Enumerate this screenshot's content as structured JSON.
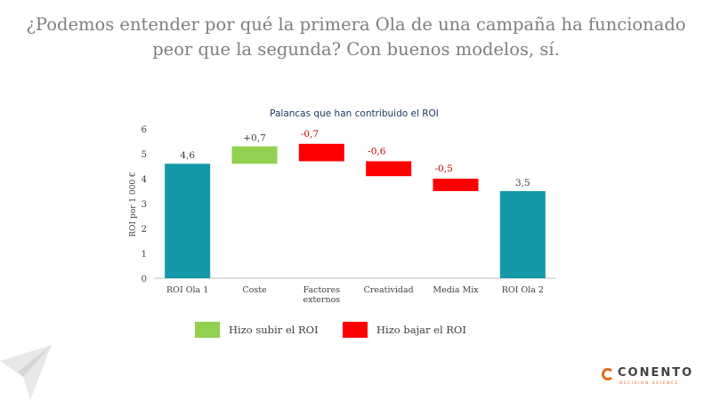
{
  "slide": {
    "title_line1": "¿Podemos entender por qué la primera Ola de una campaña ha funcionado",
    "title_line2": "peor que la segunda? Con buenos modelos, sí."
  },
  "chart_data": {
    "type": "bar",
    "subtype": "waterfall",
    "title": "Palancas que han contribuido el ROI",
    "ylabel": "ROI por 1 000 €",
    "xlabel": "",
    "ylim": [
      0,
      6
    ],
    "yticks": [
      0,
      1,
      2,
      3,
      4,
      5,
      6
    ],
    "grid": false,
    "categories": [
      "ROI Ola 1",
      "Coste",
      "Factores externos",
      "Creatividad",
      "Media Mix",
      "ROI Ola 2"
    ],
    "category_lines": [
      [
        "ROI Ola 1"
      ],
      [
        "Coste"
      ],
      [
        "Factores",
        "externos"
      ],
      [
        "Creatividad"
      ],
      [
        "Media Mix"
      ],
      [
        "ROI Ola 2"
      ]
    ],
    "bars": [
      {
        "category": "ROI Ola 1",
        "kind": "total",
        "start": 0,
        "end": 4.6,
        "label": "4,6"
      },
      {
        "category": "Coste",
        "kind": "increase",
        "start": 4.6,
        "end": 5.3,
        "label": "+0,7"
      },
      {
        "category": "Factores externos",
        "kind": "decrease",
        "start": 5.4,
        "end": 4.7,
        "label": "-0,7"
      },
      {
        "category": "Creatividad",
        "kind": "decrease",
        "start": 4.7,
        "end": 4.1,
        "label": "-0,6"
      },
      {
        "category": "Media Mix",
        "kind": "decrease",
        "start": 4.0,
        "end": 3.5,
        "label": "-0,5"
      },
      {
        "category": "ROI Ola 2",
        "kind": "total",
        "start": 0,
        "end": 3.5,
        "label": "3,5"
      }
    ],
    "colors": {
      "total": "#1598a8",
      "increase": "#92d050",
      "decrease": "#ff0000",
      "increase_label": "#404040",
      "decrease_label": "#c00000",
      "total_label": "#404040",
      "axis": "#bfbfbf"
    },
    "legend": {
      "placement": "bottom",
      "items": [
        {
          "label": "Hizo subir el ROI",
          "kind": "increase"
        },
        {
          "label": "Hizo bajar el ROI",
          "kind": "decrease"
        }
      ]
    }
  },
  "logo": {
    "name": "CONENTO",
    "tagline": "DECISION SCIENCE",
    "icon": "conento-logo-icon"
  },
  "decor": {
    "icon": "paper-plane-watermark-icon"
  }
}
